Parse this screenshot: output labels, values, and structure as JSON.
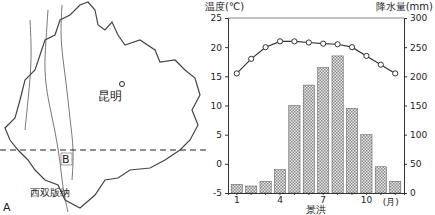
{
  "chart_data": {
    "type": "bar",
    "categories": [
      "1",
      null,
      null,
      "4",
      null,
      null,
      "7",
      null,
      null,
      "10",
      null,
      null
    ],
    "series": [
      {
        "type": "line",
        "marker": "circle",
        "color": "#333333",
        "values": [
          15.5,
          18,
          20,
          21,
          21,
          20.8,
          20.6,
          20.5,
          20,
          18.5,
          17,
          15.5
        ]
      },
      {
        "type": "bar",
        "axis": "y2",
        "color": "#8a8a8a",
        "values": [
          15,
          12,
          20,
          40,
          150,
          185,
          215,
          235,
          145,
          100,
          45,
          20
        ]
      }
    ],
    "ylim": [
      -5,
      25
    ],
    "yticks": [
      -5,
      0,
      5,
      10,
      15,
      20,
      25
    ],
    "y2lim": [
      0,
      300
    ],
    "y2ticks": [
      0,
      50,
      100,
      150,
      200,
      250,
      300
    ],
    "y_label": "温度(℃)",
    "y2_label": "降水量(mm)",
    "x_label": "景洪",
    "annotations": [
      "(月)"
    ]
  },
  "map": {
    "labels": {
      "city": "昆明",
      "region": "西双版纳",
      "point_a": "A",
      "point_b": "B"
    }
  }
}
